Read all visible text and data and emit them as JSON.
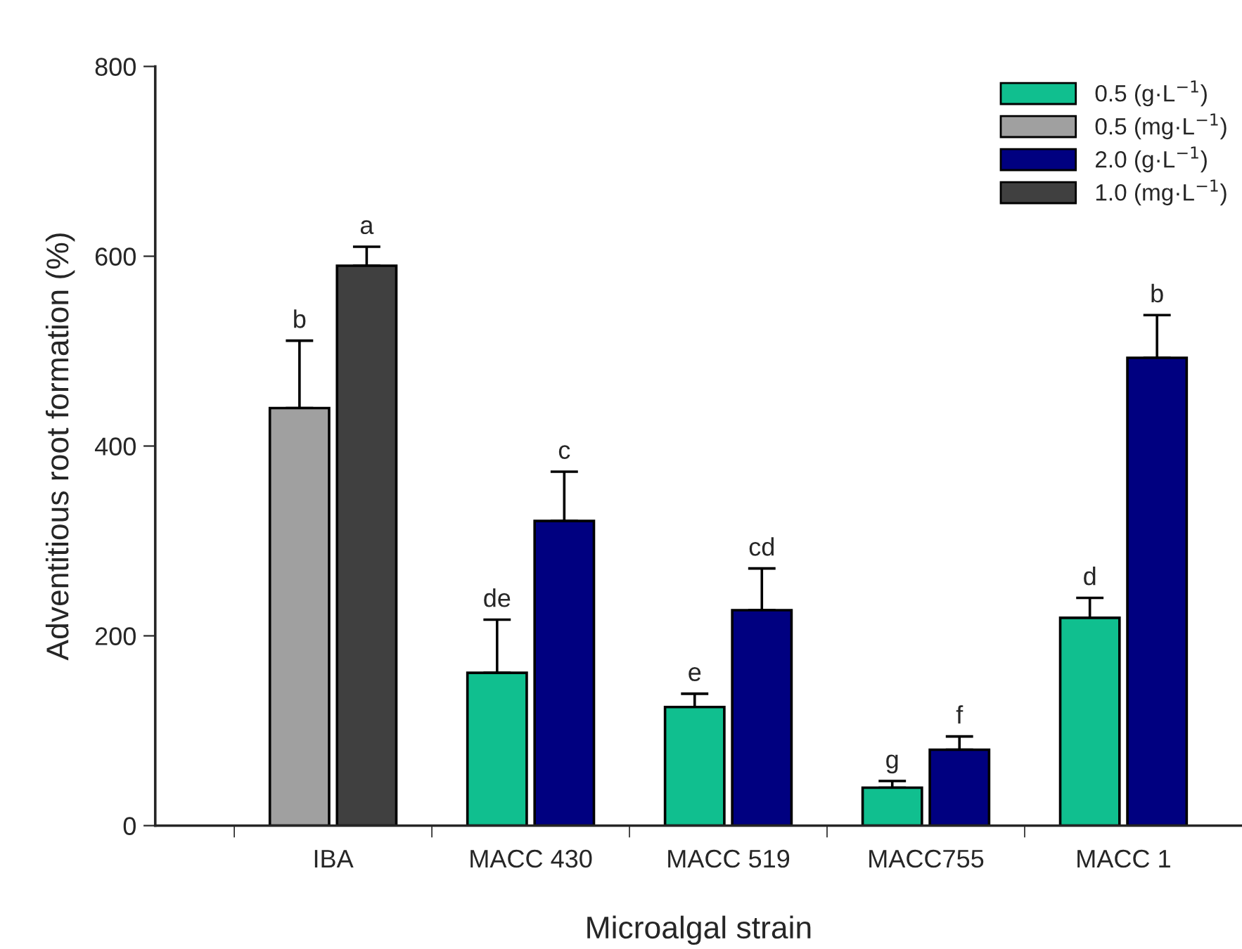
{
  "chart_data": {
    "type": "bar",
    "xlabel": "Microalgal strain",
    "ylabel": "Adventitious root formation (%)",
    "categories": [
      "IBA",
      "MACC 430",
      "MACC 519",
      "MACC755",
      "MACC 1"
    ],
    "series": [
      {
        "name": "0.5 (g·L$^{−1}$)",
        "color": "#10bf8f",
        "values": [
          null,
          161,
          125,
          40,
          219
        ],
        "errors": [
          null,
          [
            161,
            217
          ],
          [
            125,
            139
          ],
          [
            40,
            47
          ],
          [
            219,
            240
          ]
        ]
      },
      {
        "name": "0.5 (mg·L$^{−1}$)",
        "color": "#a0a0a0",
        "values": [
          440,
          null,
          null,
          null,
          null
        ],
        "errors": [
          [
            440,
            511
          ],
          null,
          null,
          null,
          null
        ]
      },
      {
        "name": "2.0 (g·L$^{−1}$)",
        "color": "#000080",
        "values": [
          null,
          321,
          227,
          80,
          493
        ],
        "errors": [
          null,
          [
            321,
            373
          ],
          [
            227,
            271
          ],
          [
            80,
            94
          ],
          [
            493,
            538
          ]
        ]
      },
      {
        "name": "1.0 (mg·L$^{−1}$)",
        "color": "#404040",
        "values": [
          590,
          null,
          null,
          null,
          null
        ],
        "errors": [
          [
            590,
            610
          ],
          null,
          null,
          null,
          null
        ]
      }
    ],
    "annotations": [
      "b",
      "a",
      "de",
      "c",
      "e",
      "cd",
      "g",
      "f",
      "d",
      "b"
    ],
    "ylim": [
      0,
      800
    ],
    "yticks": [
      0,
      200,
      400,
      600,
      800
    ],
    "legend": "top right",
    "grid": false
  }
}
